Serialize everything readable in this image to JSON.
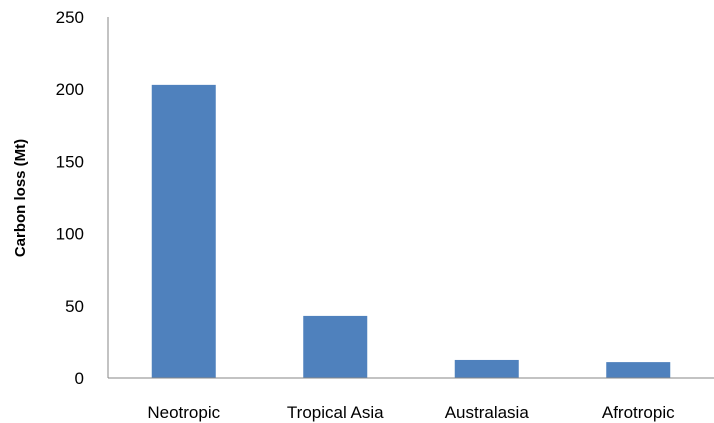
{
  "chart_data": {
    "type": "bar",
    "title": "",
    "xlabel": "",
    "ylabel": "Carbon loss (Mt)",
    "categories": [
      "Neotropic",
      "Tropical Asia",
      "Australasia",
      "Afrotropic"
    ],
    "values": [
      203,
      43,
      12.5,
      11
    ],
    "ylim": [
      0,
      250
    ],
    "yticks": [
      0,
      50,
      100,
      150,
      200,
      250
    ],
    "grid": false,
    "legend": "none",
    "bar_color": "#4f81bd"
  }
}
